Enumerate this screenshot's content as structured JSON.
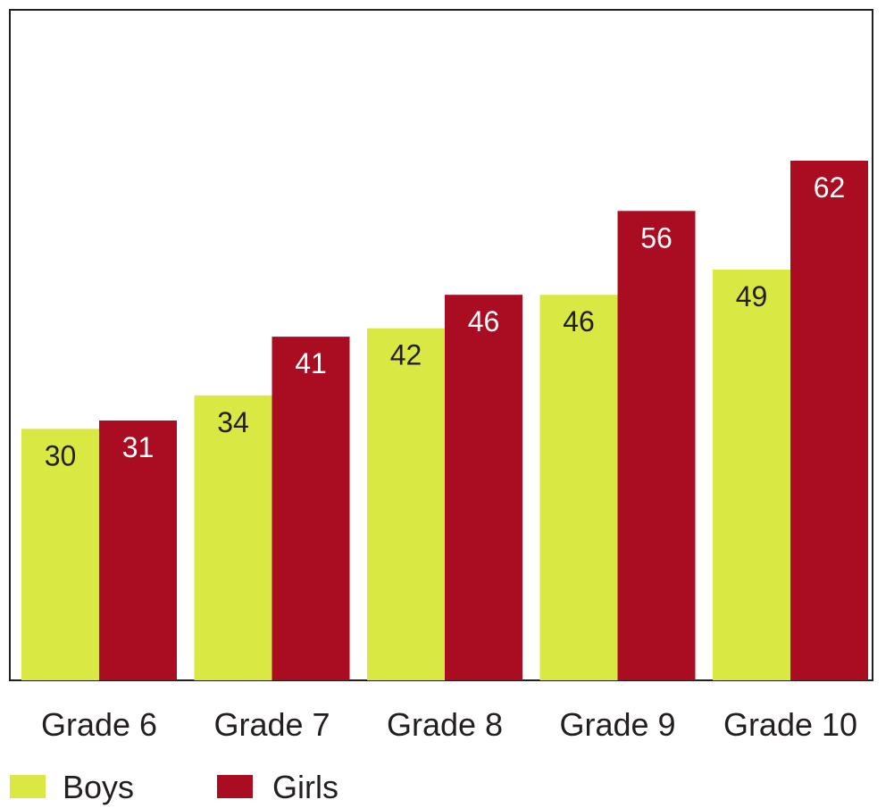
{
  "chart_data": {
    "type": "bar",
    "title": "",
    "xlabel": "",
    "ylabel": "",
    "categories": [
      "Grade 6",
      "Grade 7",
      "Grade 8",
      "Grade 9",
      "Grade 10"
    ],
    "ylim": [
      0,
      80
    ],
    "grid": false,
    "legend_position": "bottom-left",
    "series": [
      {
        "name": "Boys",
        "values": [
          30,
          34,
          42,
          46,
          49
        ],
        "color": "#d9e843",
        "label_color": "#231f20"
      },
      {
        "name": "Girls",
        "values": [
          31,
          41,
          46,
          56,
          62
        ],
        "color": "#aa0d22",
        "label_color": "#ffffff"
      }
    ]
  }
}
